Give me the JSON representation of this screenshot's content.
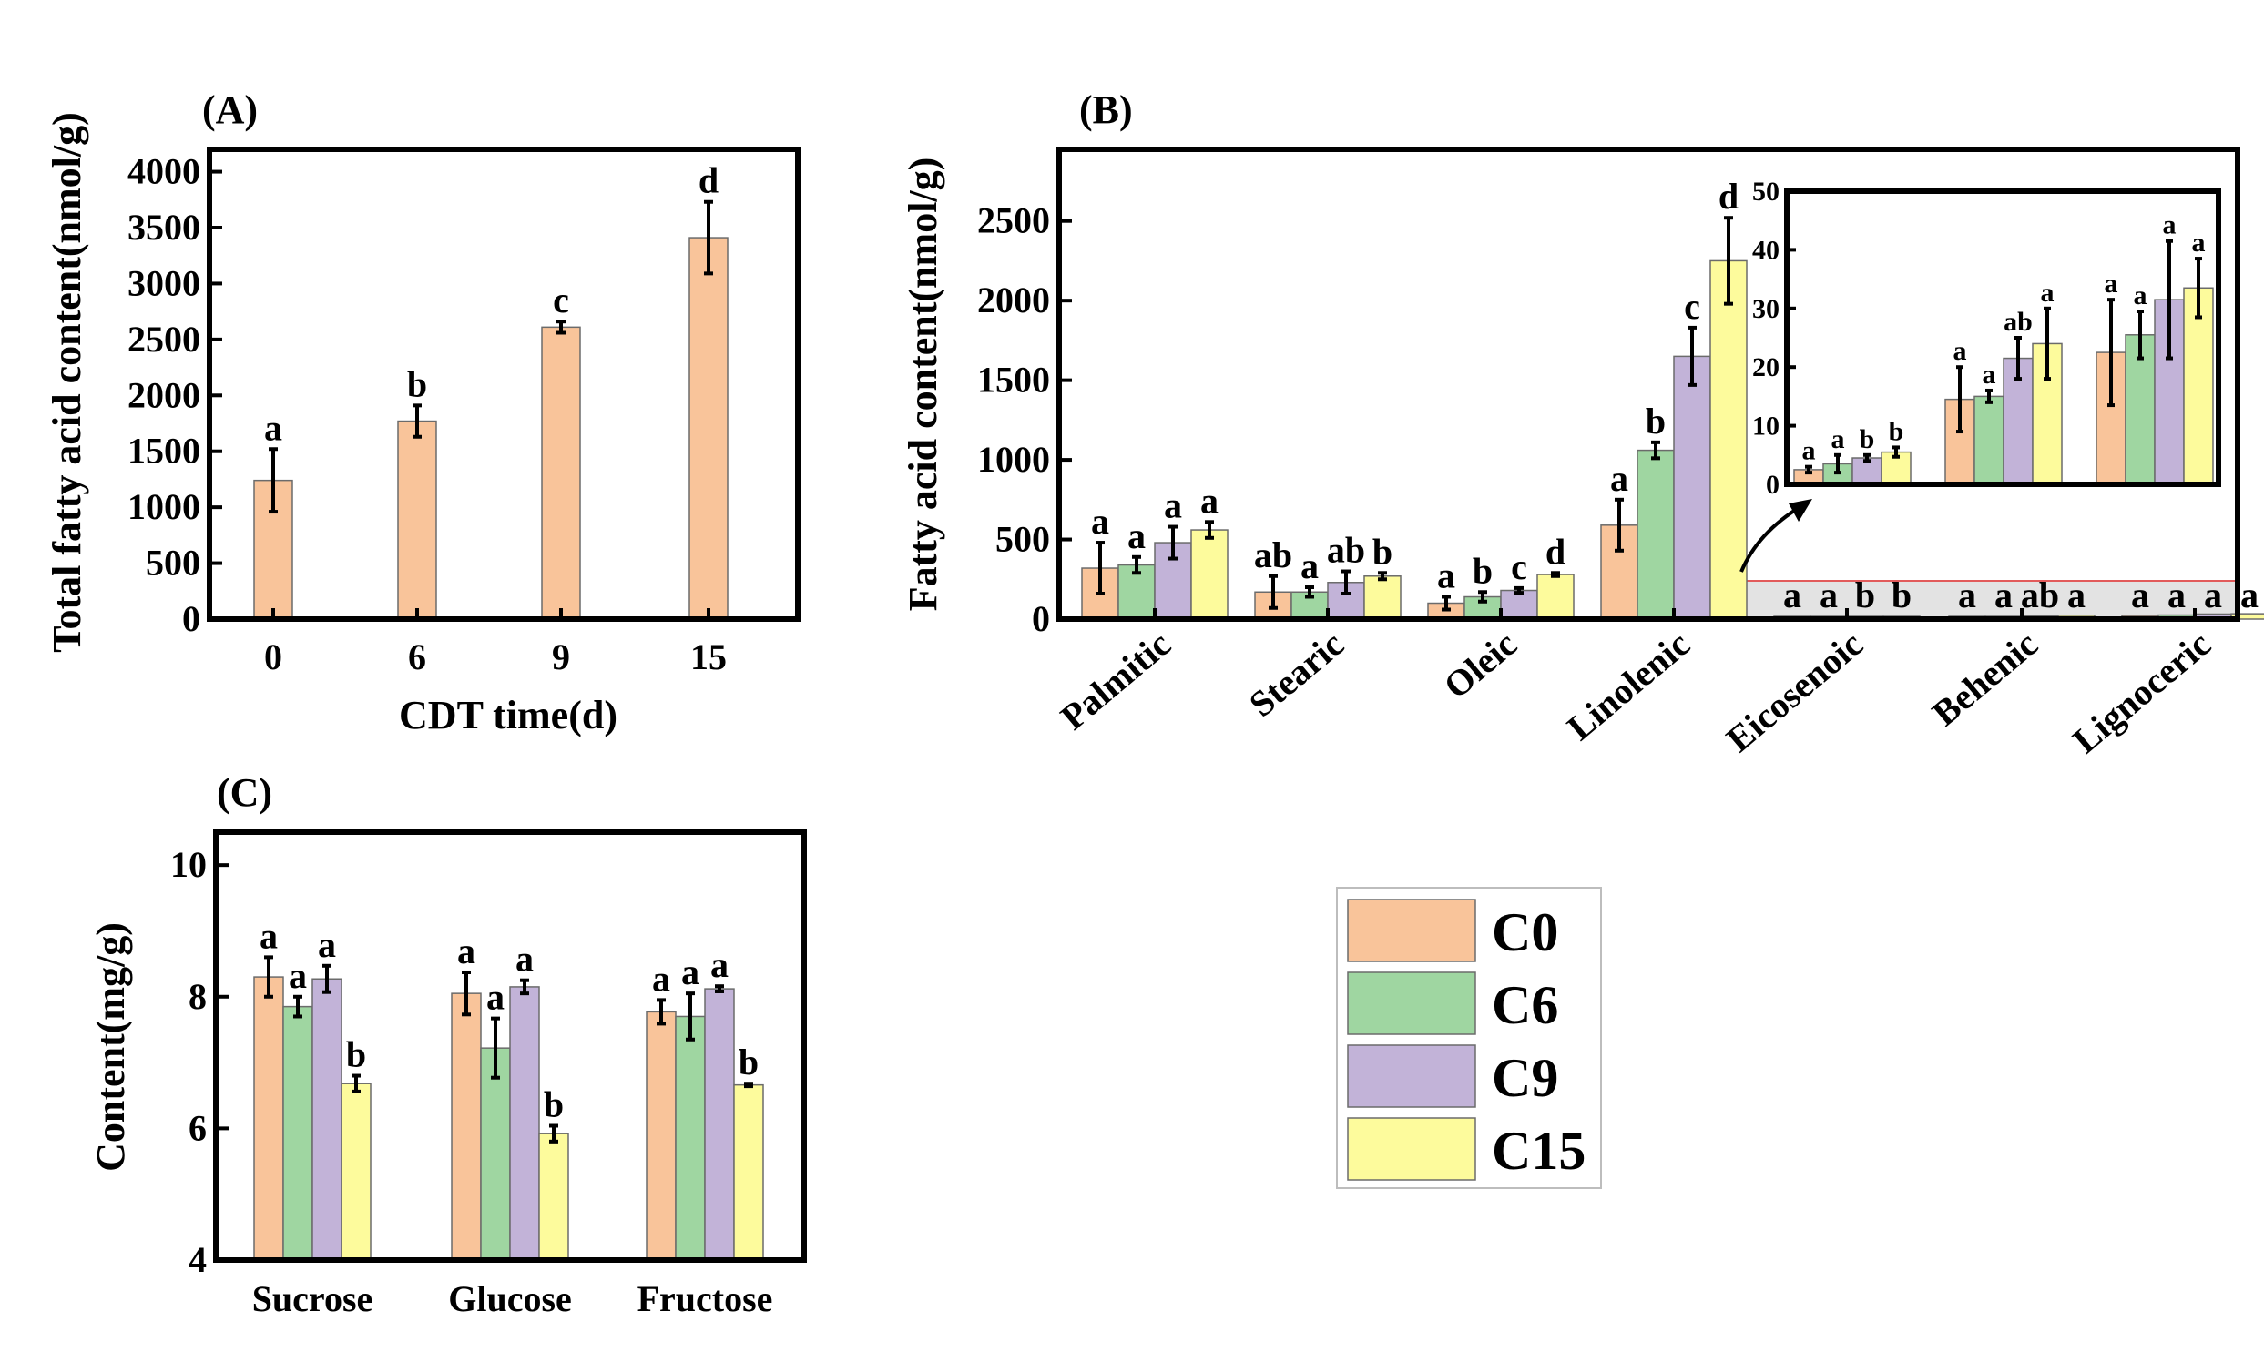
{
  "colors": {
    "C0": "#f9c49a",
    "C6": "#9fd6a1",
    "C9": "#c2b3d8",
    "C15": "#fdfb9c",
    "highlight_box": "#e25b5b",
    "highlight_fill": "#e3e3e3"
  },
  "legend": {
    "items": [
      "C0",
      "C6",
      "C9",
      "C15"
    ]
  },
  "chart_data": [
    {
      "id": "A",
      "type": "bar",
      "panel_label": "(A)",
      "xlabel": "CDT time(d)",
      "ylabel": "Total fatty acid content(nmol/g)",
      "ylim": [
        0,
        4200
      ],
      "yticks": [
        0,
        500,
        1000,
        1500,
        2000,
        2500,
        3000,
        3500,
        4000
      ],
      "categories": [
        "0",
        "6",
        "9",
        "15"
      ],
      "values": [
        1240,
        1770,
        2610,
        3410
      ],
      "errors": [
        280,
        140,
        50,
        320
      ],
      "letters": [
        "a",
        "b",
        "c",
        "d"
      ],
      "color": "#f9c49a"
    },
    {
      "id": "B",
      "type": "bar",
      "panel_label": "(B)",
      "ylabel": "Fatty acid content(nmol/g)",
      "ylim": [
        0,
        2950
      ],
      "yticks": [
        0,
        500,
        1000,
        1500,
        2000,
        2500
      ],
      "categories": [
        "Palmitic",
        "Stearic",
        "Oleic",
        "Linolenic",
        "Eicosenoic",
        "Behenic",
        "Lignoceric"
      ],
      "series": [
        {
          "name": "C0",
          "values": [
            320,
            170,
            100,
            590,
            2.5,
            14.5,
            22.5
          ],
          "errors": [
            160,
            100,
            40,
            160,
            0.5,
            5.5,
            9
          ],
          "letters": [
            "a",
            "ab",
            "a",
            "a",
            "a",
            "a",
            "a"
          ]
        },
        {
          "name": "C6",
          "values": [
            340,
            170,
            140,
            1060,
            3.5,
            15,
            25.5
          ],
          "errors": [
            50,
            30,
            30,
            50,
            1.5,
            1,
            4
          ],
          "letters": [
            "a",
            "a",
            "b",
            "b",
            "a",
            "a",
            "a"
          ]
        },
        {
          "name": "C9",
          "values": [
            480,
            230,
            180,
            1650,
            4.5,
            21.5,
            31.5
          ],
          "errors": [
            100,
            70,
            15,
            180,
            0.5,
            3.5,
            10
          ],
          "letters": [
            "a",
            "ab",
            "c",
            "c",
            "b",
            "ab",
            "a"
          ]
        },
        {
          "name": "C15",
          "values": [
            560,
            270,
            280,
            2250,
            5.5,
            24,
            33.5
          ],
          "errors": [
            50,
            20,
            10,
            270,
            0.8,
            6,
            5
          ],
          "letters": [
            "a",
            "b",
            "d",
            "d",
            "b",
            "a",
            "a"
          ]
        }
      ],
      "inset": {
        "categories": [
          "Eicosenoic",
          "Behenic",
          "Lignoceric"
        ],
        "ylim": [
          0,
          50
        ],
        "yticks": [
          0,
          10,
          20,
          30,
          40,
          50
        ]
      }
    },
    {
      "id": "C",
      "type": "bar",
      "panel_label": "(C)",
      "ylabel": "Content(mg/g)",
      "ylim": [
        4,
        10.5
      ],
      "yticks": [
        4,
        6,
        8,
        10
      ],
      "categories": [
        "Sucrose",
        "Glucose",
        "Fructose"
      ],
      "series": [
        {
          "name": "C0",
          "values": [
            8.3,
            8.05,
            7.77
          ],
          "errors": [
            0.3,
            0.32,
            0.18
          ],
          "letters": [
            "a",
            "a",
            "a"
          ]
        },
        {
          "name": "C6",
          "values": [
            7.85,
            7.22,
            7.7
          ],
          "errors": [
            0.15,
            0.45,
            0.35
          ],
          "letters": [
            "a",
            "a",
            "a"
          ]
        },
        {
          "name": "C9",
          "values": [
            8.27,
            8.15,
            8.12
          ],
          "errors": [
            0.2,
            0.1,
            0.04
          ],
          "letters": [
            "a",
            "a",
            "a"
          ]
        },
        {
          "name": "C15",
          "values": [
            6.68,
            5.92,
            6.66
          ],
          "errors": [
            0.12,
            0.12,
            0.02
          ],
          "letters": [
            "b",
            "b",
            "b"
          ]
        }
      ]
    }
  ]
}
